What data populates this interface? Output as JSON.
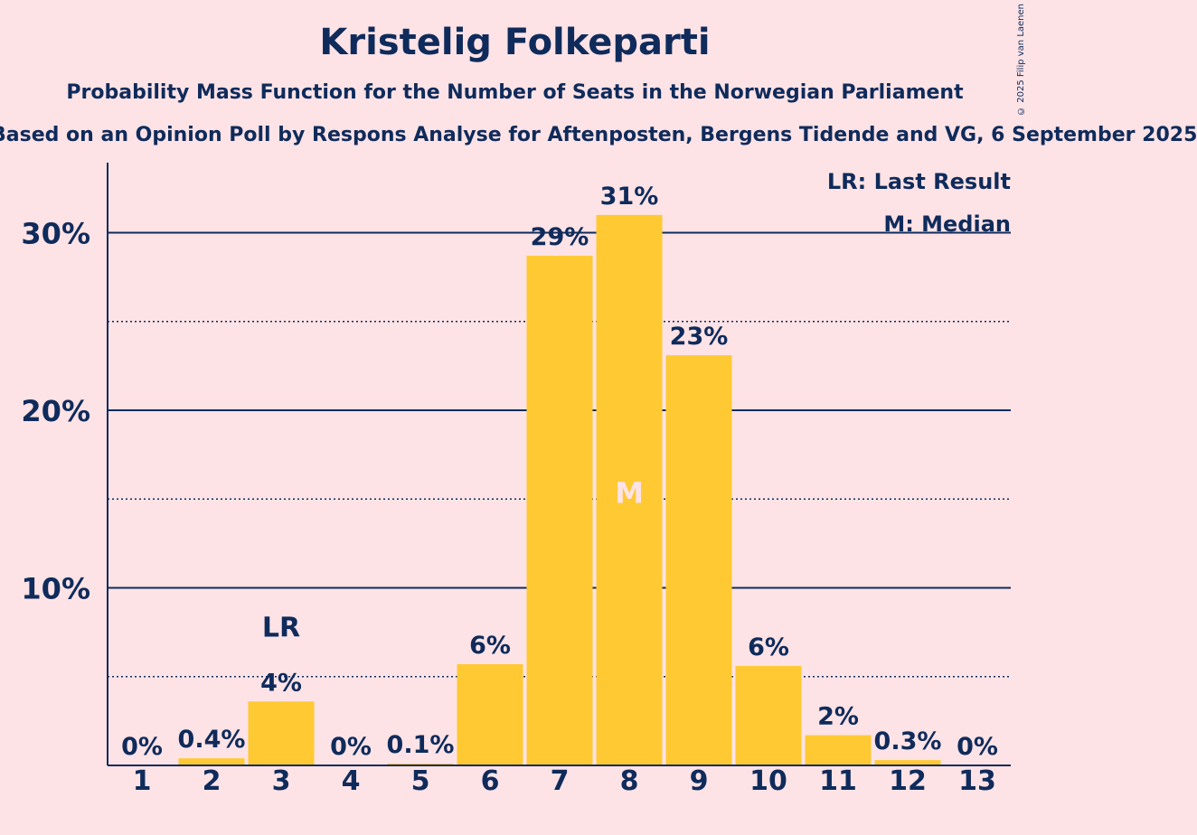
{
  "header": {
    "title": "Kristelig Folkeparti",
    "subtitle": "Probability Mass Function for the Number of Seats in the Norwegian Parliament",
    "source": "Based on an Opinion Poll by Respons Analyse for Aftenposten, Bergens Tidende and VG, 6 September 2025",
    "copyright": "© 2025 Filip van Laenen"
  },
  "legend": {
    "last_result": "LR: Last Result",
    "median": "M: Median"
  },
  "colors": {
    "background": "#fde3e6",
    "bar": "#ffc933",
    "text": "#0f2b5b"
  },
  "chart_data": {
    "type": "bar",
    "title": "Kristelig Folkeparti",
    "xlabel": "",
    "ylabel": "",
    "categories": [
      "1",
      "2",
      "3",
      "4",
      "5",
      "6",
      "7",
      "8",
      "9",
      "10",
      "11",
      "12",
      "13"
    ],
    "values": [
      0,
      0.4,
      3.6,
      0,
      0.1,
      5.7,
      28.7,
      31.0,
      23.1,
      5.6,
      1.7,
      0.3,
      0
    ],
    "labels": [
      "0%",
      "0.4%",
      "4%",
      "0%",
      "0.1%",
      "6%",
      "29%",
      "31%",
      "23%",
      "6%",
      "2%",
      "0.3%",
      "0%"
    ],
    "ylim": [
      0,
      33.5
    ],
    "yticks": [
      {
        "value": 10,
        "label": "10%"
      },
      {
        "value": 20,
        "label": "20%"
      },
      {
        "value": 30,
        "label": "30%"
      }
    ],
    "minor_gridlines": [
      5,
      15,
      25
    ],
    "last_result": {
      "category": "3",
      "label": "LR"
    },
    "median": {
      "category": "8",
      "label": "M"
    },
    "grid": true,
    "legend_position": "top-right"
  }
}
